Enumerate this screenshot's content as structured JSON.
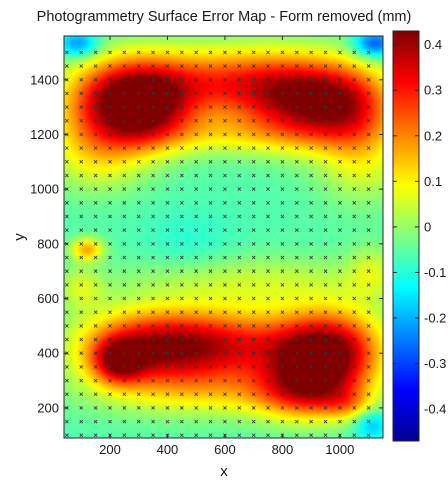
{
  "chart_data": {
    "type": "heatmap",
    "title": "Photogrammetry Surface Error Map  - Form removed (mm)",
    "xlabel": "x",
    "ylabel": "y",
    "xlim": [
      40,
      1150
    ],
    "ylim": [
      90,
      1560
    ],
    "x_ticks": [
      "200",
      "400",
      "600",
      "800",
      "1000"
    ],
    "y_ticks": [
      "200",
      "400",
      "600",
      "800",
      "1000",
      "1200",
      "1400"
    ],
    "colorbar": {
      "colormap": "jet",
      "range": [
        -0.47,
        0.43
      ],
      "ticks": [
        "-0.4",
        "-0.3",
        "-0.2",
        "-0.1",
        "0",
        "0.1",
        "0.2",
        "0.3",
        "0.4"
      ]
    },
    "baseline_value": -0.06,
    "features": [
      {
        "x": 230,
        "y": 1310,
        "sx": 140,
        "sy": 110,
        "value": 0.34
      },
      {
        "x": 340,
        "y": 1310,
        "sx": 110,
        "sy": 100,
        "value": 0.16
      },
      {
        "x": 900,
        "y": 1320,
        "sx": 160,
        "sy": 105,
        "value": 0.33
      },
      {
        "x": 1050,
        "y": 1300,
        "sx": 110,
        "sy": 100,
        "value": 0.1
      },
      {
        "x": 600,
        "y": 1390,
        "sx": 230,
        "sy": 90,
        "value": 0.24
      },
      {
        "x": 600,
        "y": 1200,
        "sx": 280,
        "sy": 55,
        "value": 0.05
      },
      {
        "x": 150,
        "y": 1110,
        "sx": 120,
        "sy": 90,
        "value": 0.06
      },
      {
        "x": 1080,
        "y": 1100,
        "sx": 110,
        "sy": 110,
        "value": 0.06
      },
      {
        "x": 480,
        "y": 800,
        "sx": 110,
        "sy": 80,
        "value": -0.1
      },
      {
        "x": 780,
        "y": 980,
        "sx": 170,
        "sy": 130,
        "value": -0.06
      },
      {
        "x": 120,
        "y": 780,
        "sx": 40,
        "sy": 30,
        "value": 0.16
      },
      {
        "x": 100,
        "y": 640,
        "sx": 55,
        "sy": 55,
        "value": 0.04
      },
      {
        "x": 1110,
        "y": 700,
        "sx": 60,
        "sy": 70,
        "value": 0.03
      },
      {
        "x": 700,
        "y": 660,
        "sx": 320,
        "sy": 70,
        "value": 0.04
      },
      {
        "x": 230,
        "y": 370,
        "sx": 60,
        "sy": 55,
        "value": 0.22
      },
      {
        "x": 320,
        "y": 420,
        "sx": 170,
        "sy": 95,
        "value": 0.3
      },
      {
        "x": 600,
        "y": 430,
        "sx": 190,
        "sy": 90,
        "value": 0.26
      },
      {
        "x": 910,
        "y": 380,
        "sx": 120,
        "sy": 110,
        "value": 0.35
      },
      {
        "x": 1030,
        "y": 420,
        "sx": 110,
        "sy": 100,
        "value": 0.14
      },
      {
        "x": 880,
        "y": 250,
        "sx": 120,
        "sy": 70,
        "value": 0.1
      },
      {
        "x": 1030,
        "y": 210,
        "sx": 60,
        "sy": 40,
        "value": 0.05
      },
      {
        "x": 600,
        "y": 260,
        "sx": 300,
        "sy": 70,
        "value": 0.08
      },
      {
        "x": 90,
        "y": 1530,
        "sx": 50,
        "sy": 35,
        "value": -0.25
      },
      {
        "x": 1120,
        "y": 1530,
        "sx": 50,
        "sy": 35,
        "value": -0.3
      },
      {
        "x": 1110,
        "y": 140,
        "sx": 45,
        "sy": 40,
        "value": -0.2
      }
    ],
    "measurement_points": {
      "marker": "x",
      "x_start": 50,
      "x_step": 50,
      "x_count": 22,
      "y_start": 100,
      "y_step": 50,
      "y_count": 29
    }
  }
}
